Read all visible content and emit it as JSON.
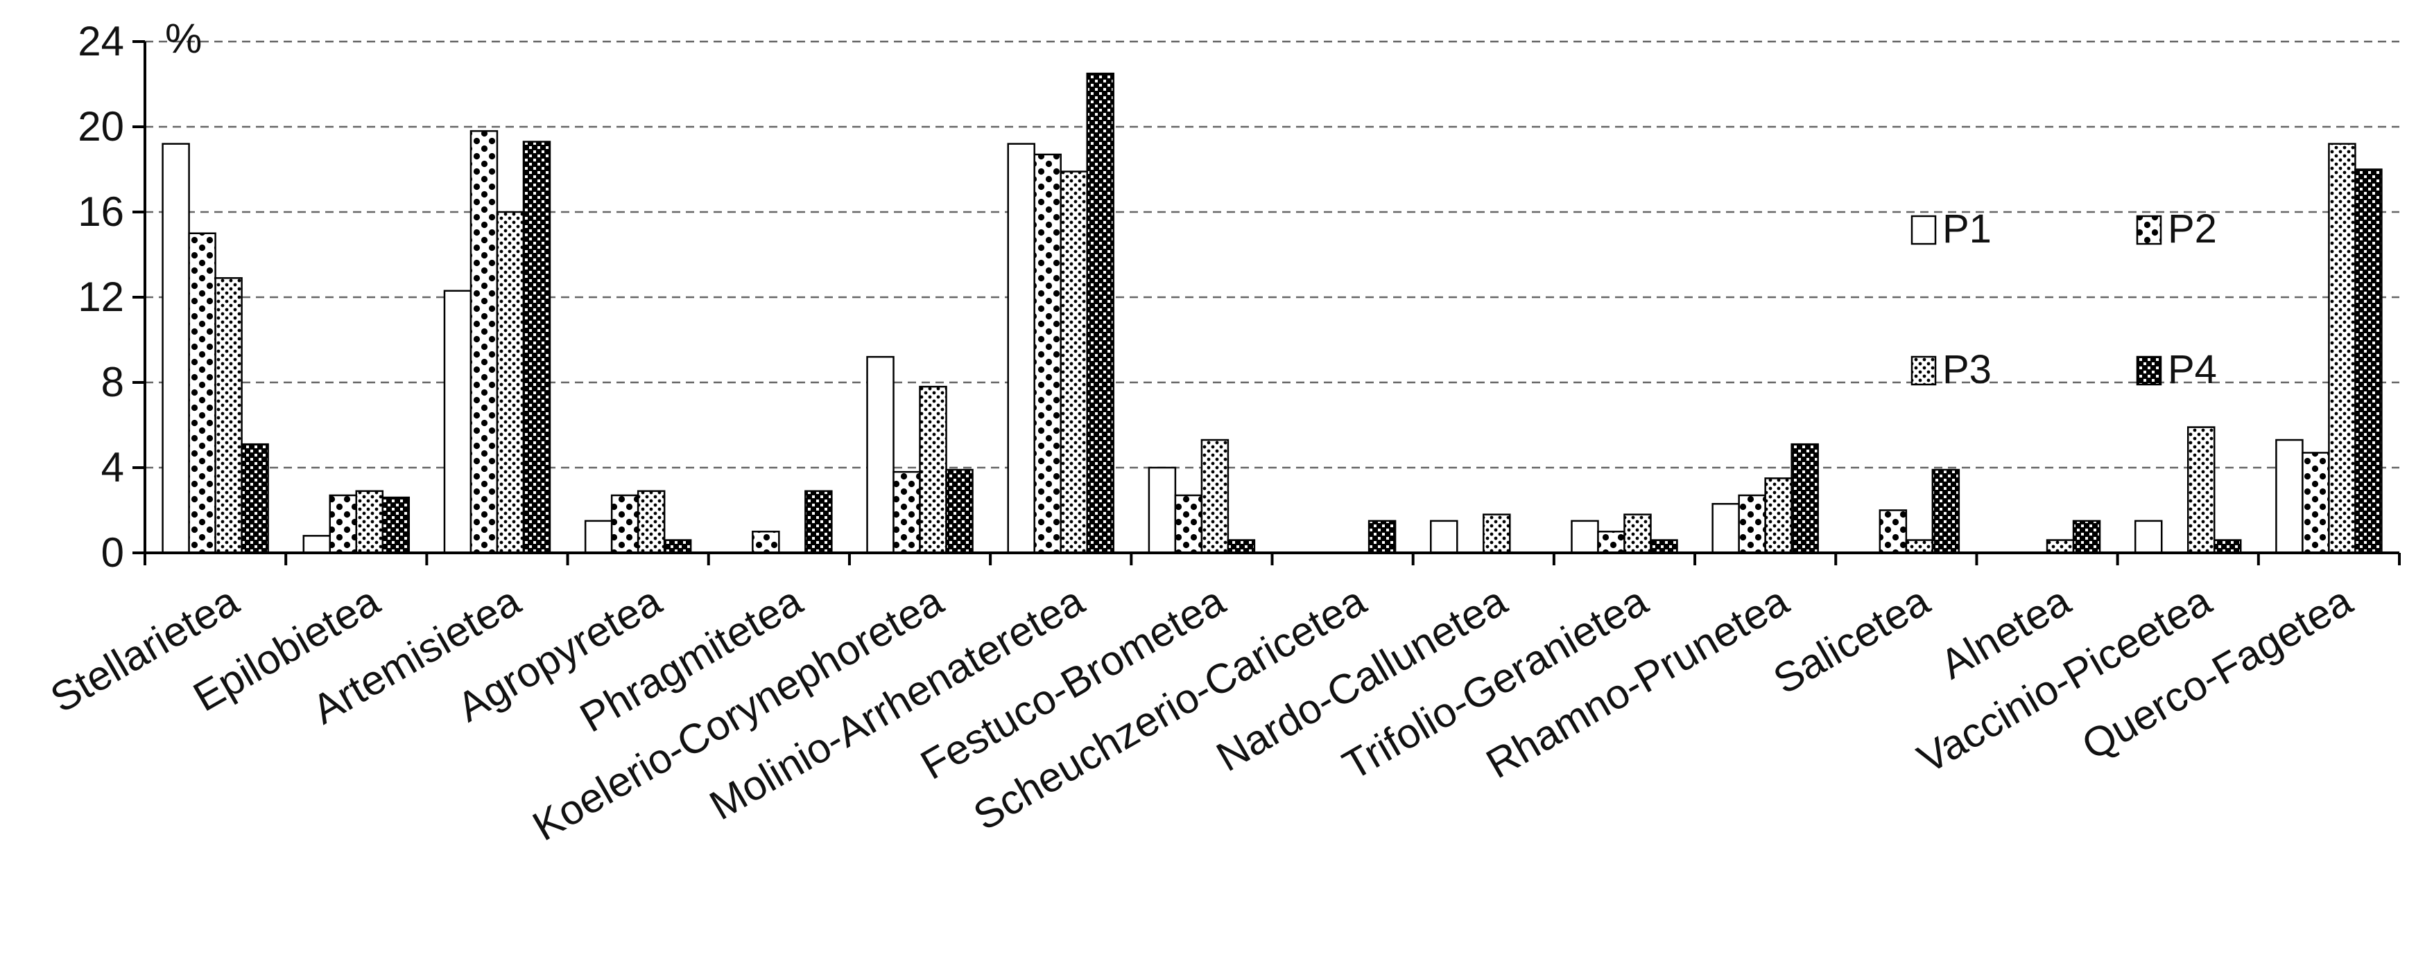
{
  "chart_data": {
    "type": "bar",
    "ylabel": "%",
    "ylim": [
      0,
      24
    ],
    "yticks": [
      "0",
      "4",
      "8",
      "12",
      "16",
      "20",
      "24"
    ],
    "grid": "horizontal dashed",
    "legend_position": "right, inside plot",
    "categories": [
      "Stellarietea",
      "Epilobietea",
      "Artemisietea",
      "Agropyretea",
      "Phragmitetea",
      "Koelerio-Corynephoretea",
      "Molinio-Arrhenateretea",
      "Festuco-Brometea",
      "Scheuchzerio-Caricetea",
      "Nardo-Callunetea",
      "Trifolio-Geranietea",
      "Rhamno-Prunetea",
      "Salicetea",
      "Alnetea",
      "Vaccinio-Piceetea",
      "Querco-Fagetea"
    ],
    "series": [
      {
        "name": "P1",
        "pattern": "white",
        "values": [
          19.2,
          0.8,
          12.3,
          1.5,
          0,
          9.2,
          19.2,
          4.0,
          0,
          1.5,
          1.5,
          2.3,
          0,
          0,
          1.5,
          5.3
        ]
      },
      {
        "name": "P2",
        "pattern": "big-dots",
        "values": [
          15.0,
          2.7,
          19.8,
          2.7,
          1.0,
          3.8,
          18.7,
          2.7,
          0,
          0,
          1.0,
          2.7,
          2.0,
          0,
          0,
          4.7
        ]
      },
      {
        "name": "P3",
        "pattern": "small-dots",
        "values": [
          12.9,
          2.9,
          16.0,
          2.9,
          0,
          7.8,
          17.9,
          5.3,
          0,
          1.8,
          1.8,
          3.5,
          0.6,
          0.6,
          5.9,
          19.2
        ]
      },
      {
        "name": "P4",
        "pattern": "crosshatch",
        "values": [
          5.1,
          2.6,
          19.3,
          0.6,
          2.9,
          3.9,
          22.5,
          0.6,
          1.5,
          0,
          0.6,
          5.1,
          3.9,
          1.5,
          0.6,
          18.0
        ]
      }
    ],
    "colors": {
      "axis": "#000000",
      "grid": "#666666",
      "bar_outline": "#000000",
      "fill": "#000000"
    }
  }
}
